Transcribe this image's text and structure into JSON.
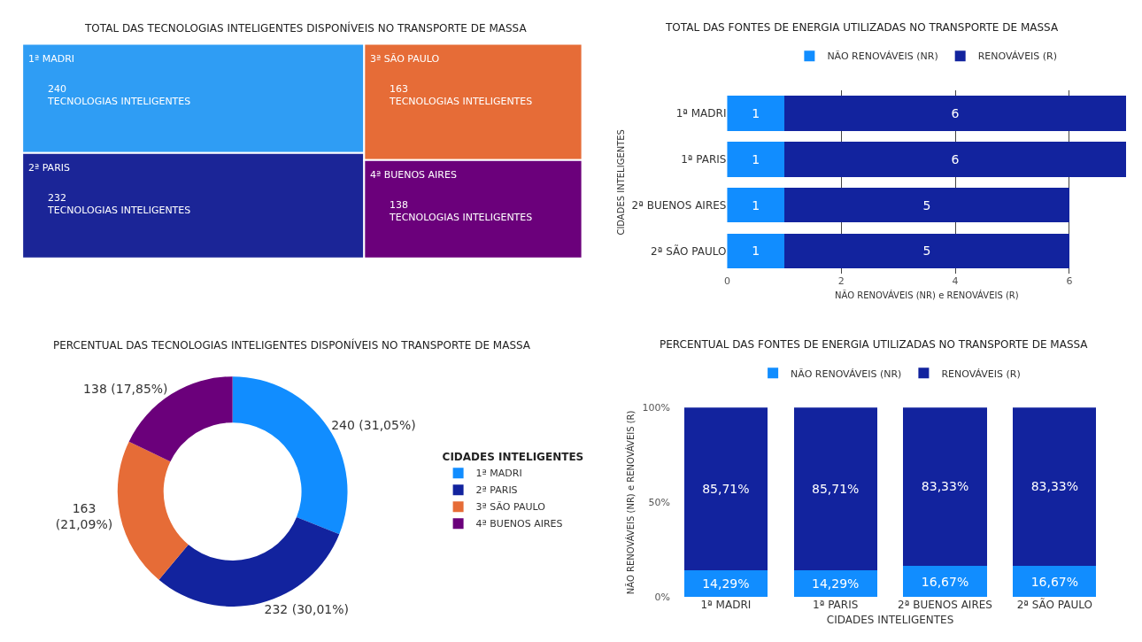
{
  "chart_data": [
    {
      "type": "other",
      "title": "TOTAL DAS TECNOLOGIAS INTELIGENTES DISPONÍVEIS NO TRANSPORTE DE MASSA",
      "categories": [
        "1ª MADRI",
        "3ª SÃO PAULO",
        "2ª PARIS",
        "4ª BUENOS AIRES"
      ],
      "values": [
        240,
        163,
        232,
        138
      ],
      "colors": [
        "#2f9df4",
        "#e66c37",
        "#1b2597",
        "#6b007b"
      ],
      "value_labels": [
        "240\nTECNOLOGIAS INTELIGENTES",
        "163\nTECNOLOGIAS INTELIGENTES",
        "232\nTECNOLOGIAS INTELIGENTES",
        "138\nTECNOLOGIAS INTELIGENTES"
      ]
    },
    {
      "type": "bar",
      "orientation": "horizontal",
      "stacked": true,
      "title": "TOTAL DAS FONTES DE ENERGIA UTILIZADAS NO TRANSPORTE DE MASSA",
      "xlabel": "NÃO RENOVÁVEIS (NR) e RENOVÁVEIS (R)",
      "ylabel": "CIDADES INTELIGENTES",
      "categories": [
        "1ª MADRI",
        "1ª PARIS",
        "2ª BUENOS AIRES",
        "2ª SÃO PAULO"
      ],
      "series": [
        {
          "name": "NÃO RENOVÁVEIS (NR)",
          "color": "#118dff",
          "values": [
            1,
            1,
            1,
            1
          ]
        },
        {
          "name": "RENOVÁVEIS (R)",
          "color": "#12239e",
          "values": [
            6,
            6,
            5,
            5
          ]
        }
      ],
      "xlim": [
        0,
        7
      ],
      "xticks": [
        0,
        2,
        4,
        6
      ],
      "grid": "x",
      "legend": "top",
      "data_labels": true
    },
    {
      "type": "donut",
      "title": "PERCENTUAL DAS TECNOLOGIAS INTELIGENTES DISPONÍVEIS NO TRANSPORTE DE MASSA",
      "legend_title": "CIDADES INTELIGENTES",
      "categories": [
        "1ª MADRI",
        "2ª PARIS",
        "3ª SÃO PAULO",
        "4ª BUENOS AIRES"
      ],
      "values": [
        240,
        232,
        163,
        138
      ],
      "colors": [
        "#118dff",
        "#12239e",
        "#e66c37",
        "#6b007b"
      ],
      "value_labels": [
        "240 (31,05%)",
        "232 (30,01%)",
        "163\n(21,09%)",
        "138 (17,85%)"
      ],
      "legend": "right"
    },
    {
      "type": "bar",
      "stacked": true,
      "title": "PERCENTUAL DAS FONTES DE ENERGIA UTILIZADAS NO TRANSPORTE DE MASSA",
      "xlabel": "CIDADES INTELIGENTES",
      "ylabel": "NÃO RENOVÁVEIS (NR) e RENOVÁVEIS (R)",
      "categories": [
        "1ª MADRI",
        "1ª PARIS",
        "2ª BUENOS AIRES",
        "2ª SÃO PAULO"
      ],
      "series": [
        {
          "name": "NÃO RENOVÁVEIS (NR)",
          "color": "#118dff",
          "values": [
            14.29,
            14.29,
            16.67,
            16.67
          ],
          "value_labels": [
            "14,29%",
            "14,29%",
            "16,67%",
            "16,67%"
          ]
        },
        {
          "name": "RENOVÁVEIS (R)",
          "color": "#12239e",
          "values": [
            85.71,
            85.71,
            83.33,
            83.33
          ],
          "value_labels": [
            "85,71%",
            "85,71%",
            "83,33%",
            "83,33%"
          ]
        }
      ],
      "ylim": [
        0,
        100
      ],
      "yticks": [
        {
          "value": 0,
          "label": "0%"
        },
        {
          "value": 50,
          "label": "50%"
        },
        {
          "value": 100,
          "label": "100%"
        }
      ],
      "legend": "top"
    }
  ]
}
